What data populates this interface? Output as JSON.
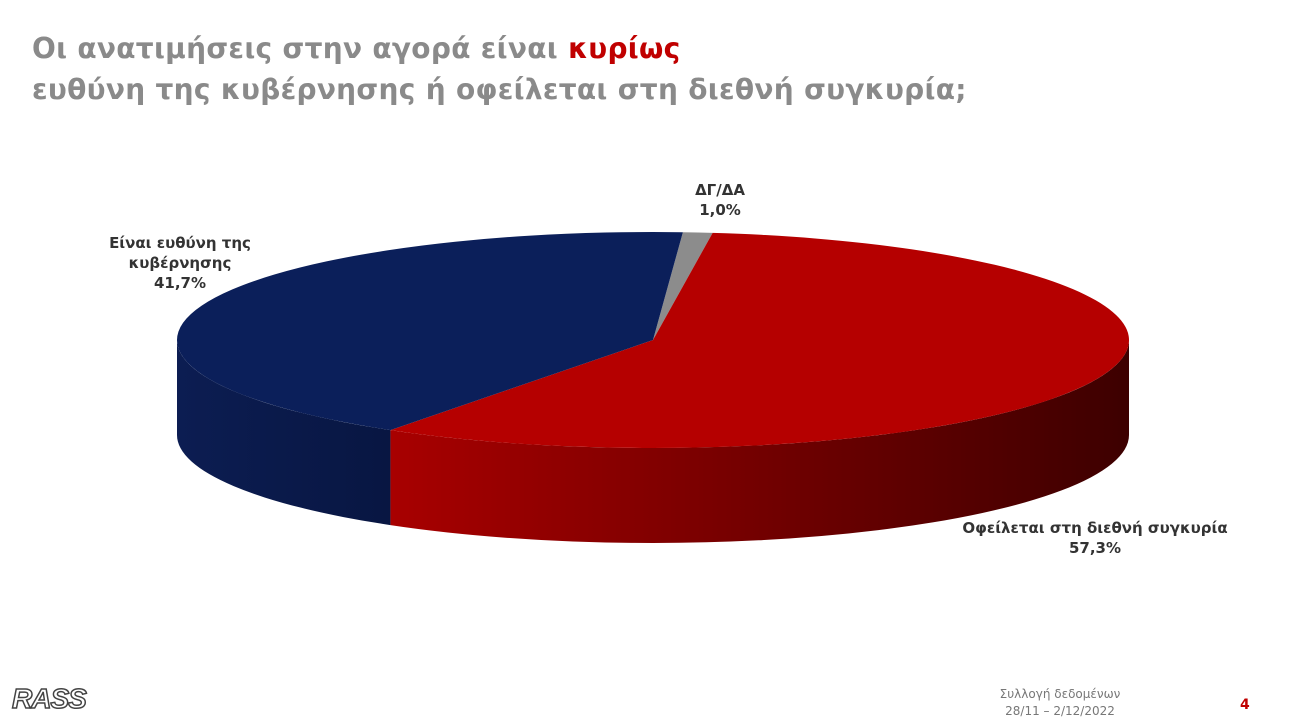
{
  "chart_data": {
    "type": "pie3d",
    "title_parts": [
      "Οι ανατιμήσεις στην αγορά είναι",
      "κυρίως",
      "ευθύνη της κυβέρνησης ή οφείλεται στη διεθνή συγκυρία;"
    ],
    "categories": [
      "ΔΓ/ΔΑ",
      "Οφείλεται στη διεθνή συγκυρία",
      "Είναι ευθύνη της κυβέρνησης"
    ],
    "values": [
      1.0,
      57.3,
      41.7
    ],
    "value_labels": [
      "1,0%",
      "57,3%",
      "41,7%"
    ],
    "colors": [
      "#8c8c8c",
      "#b50000",
      "#0b1f5a"
    ]
  },
  "footer": {
    "logo": "RASS",
    "source_label": "Συλλογή δεδομένων",
    "dates": "28/11 – 2/12/2022",
    "page": "4"
  }
}
